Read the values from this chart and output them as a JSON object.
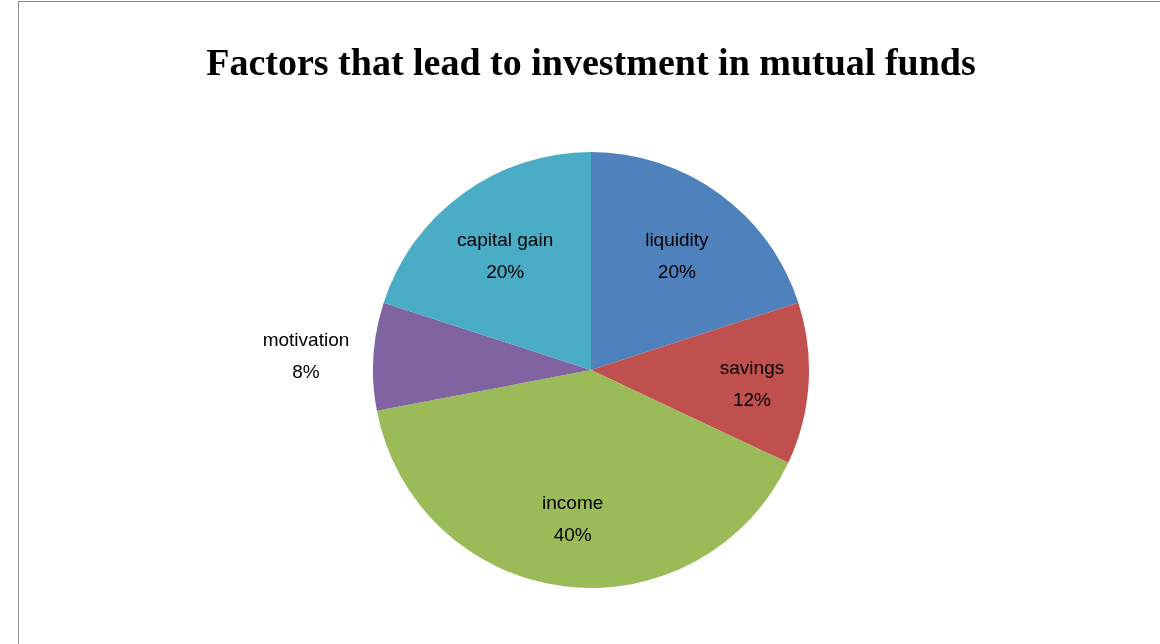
{
  "chart_data": {
    "type": "pie",
    "title": "Factors that lead to investment in mutual funds",
    "categories": [
      "liquidity",
      "savings",
      "income",
      "motivation",
      "capital gain"
    ],
    "values": [
      20,
      12,
      40,
      8,
      20
    ],
    "colors": [
      "#4f81bd",
      "#c0504d",
      "#9bbb59",
      "#8064a2",
      "#4bacc6"
    ],
    "value_labels": [
      "20%",
      "12%",
      "40%",
      "8%",
      "20%"
    ]
  }
}
